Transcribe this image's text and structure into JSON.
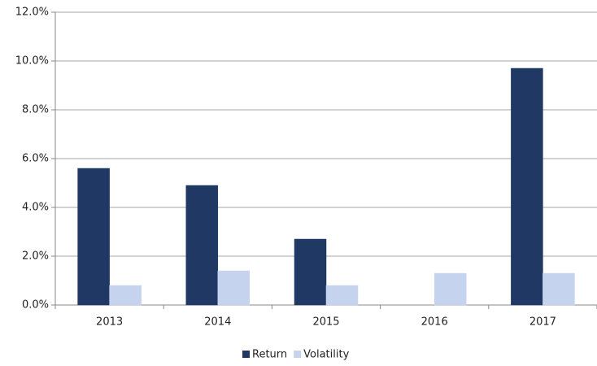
{
  "chart_data": {
    "type": "bar",
    "categories": [
      "2013",
      "2014",
      "2015",
      "2016",
      "2017"
    ],
    "series": [
      {
        "name": "Return",
        "color": "#1f3864",
        "values": [
          5.6,
          4.9,
          2.7,
          0.0,
          9.7
        ]
      },
      {
        "name": "Volatility",
        "color": "#c5d3ef",
        "values": [
          0.8,
          1.4,
          0.8,
          1.3,
          1.3
        ]
      }
    ],
    "ylim": [
      0,
      12
    ],
    "yticks": [
      {
        "value": 0,
        "label": "0.0%"
      },
      {
        "value": 2,
        "label": "2.0%"
      },
      {
        "value": 4,
        "label": "4.0%"
      },
      {
        "value": 6,
        "label": "6.0%"
      },
      {
        "value": 8,
        "label": "8.0%"
      },
      {
        "value": 10,
        "label": "10.0%"
      },
      {
        "value": 12,
        "label": "12.0%"
      }
    ],
    "grid": true,
    "legend": "bottom"
  }
}
